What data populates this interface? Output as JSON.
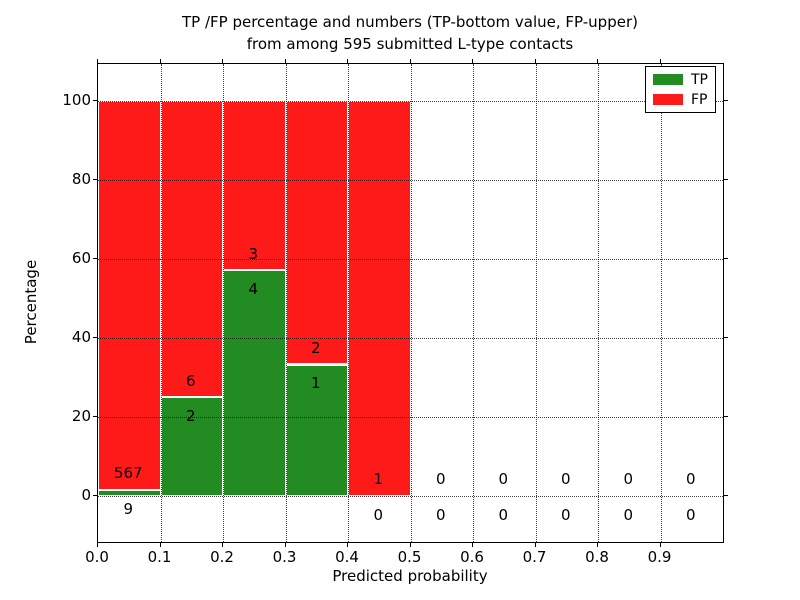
{
  "figure": {
    "title_line1": "TP /FP percentage and numbers (TP-bottom value, FP-upper)",
    "title_line2": "from among 595 submitted L-type contacts",
    "xlabel": "Predicted probability",
    "ylabel": "Percentage"
  },
  "chart_data": {
    "type": "bar",
    "stacked": true,
    "title": "TP /FP percentage and numbers (TP-bottom value, FP-upper)\nfrom among 595 submitted L-type contacts",
    "xlabel": "Predicted probability",
    "ylabel": "Percentage",
    "total_submitted_contacts": 595,
    "xlim": [
      0.0,
      1.0
    ],
    "ylim": [
      -11.6,
      109.4
    ],
    "yticks": [
      0,
      20,
      40,
      60,
      80,
      100
    ],
    "xticks": [
      0.0,
      0.1,
      0.2,
      0.3,
      0.4,
      0.5,
      0.6,
      0.7,
      0.8,
      0.9
    ],
    "xtick_labels": [
      "0.0",
      "0.1",
      "0.2",
      "0.3",
      "0.4",
      "0.5",
      "0.6",
      "0.7",
      "0.8",
      "0.9"
    ],
    "grid": "dotted, both axes, drawn above bars",
    "legend_position": "upper right",
    "series": [
      {
        "name": "TP",
        "color": "#228b22"
      },
      {
        "name": "FP",
        "color": "#ff1a1a"
      }
    ],
    "bins": [
      {
        "range": [
          0.0,
          0.1
        ],
        "tp": 9,
        "fp": 567,
        "tp_pct": 1.56,
        "fp_pct": 98.44
      },
      {
        "range": [
          0.1,
          0.2
        ],
        "tp": 2,
        "fp": 6,
        "tp_pct": 25.0,
        "fp_pct": 75.0
      },
      {
        "range": [
          0.2,
          0.3
        ],
        "tp": 4,
        "fp": 3,
        "tp_pct": 57.14,
        "fp_pct": 42.86
      },
      {
        "range": [
          0.3,
          0.4
        ],
        "tp": 1,
        "fp": 2,
        "tp_pct": 33.33,
        "fp_pct": 66.67
      },
      {
        "range": [
          0.4,
          0.5
        ],
        "tp": 0,
        "fp": 1,
        "tp_pct": 0.0,
        "fp_pct": 100.0
      },
      {
        "range": [
          0.5,
          0.6
        ],
        "tp": 0,
        "fp": 0,
        "tp_pct": 0.0,
        "fp_pct": 0.0
      },
      {
        "range": [
          0.6,
          0.7
        ],
        "tp": 0,
        "fp": 0,
        "tp_pct": 0.0,
        "fp_pct": 0.0
      },
      {
        "range": [
          0.7,
          0.8
        ],
        "tp": 0,
        "fp": 0,
        "tp_pct": 0.0,
        "fp_pct": 0.0
      },
      {
        "range": [
          0.8,
          0.9
        ],
        "tp": 0,
        "fp": 0,
        "tp_pct": 0.0,
        "fp_pct": 0.0
      },
      {
        "range": [
          0.9,
          1.0
        ],
        "tp": 0,
        "fp": 0,
        "tp_pct": 0.0,
        "fp_pct": 0.0
      }
    ]
  }
}
